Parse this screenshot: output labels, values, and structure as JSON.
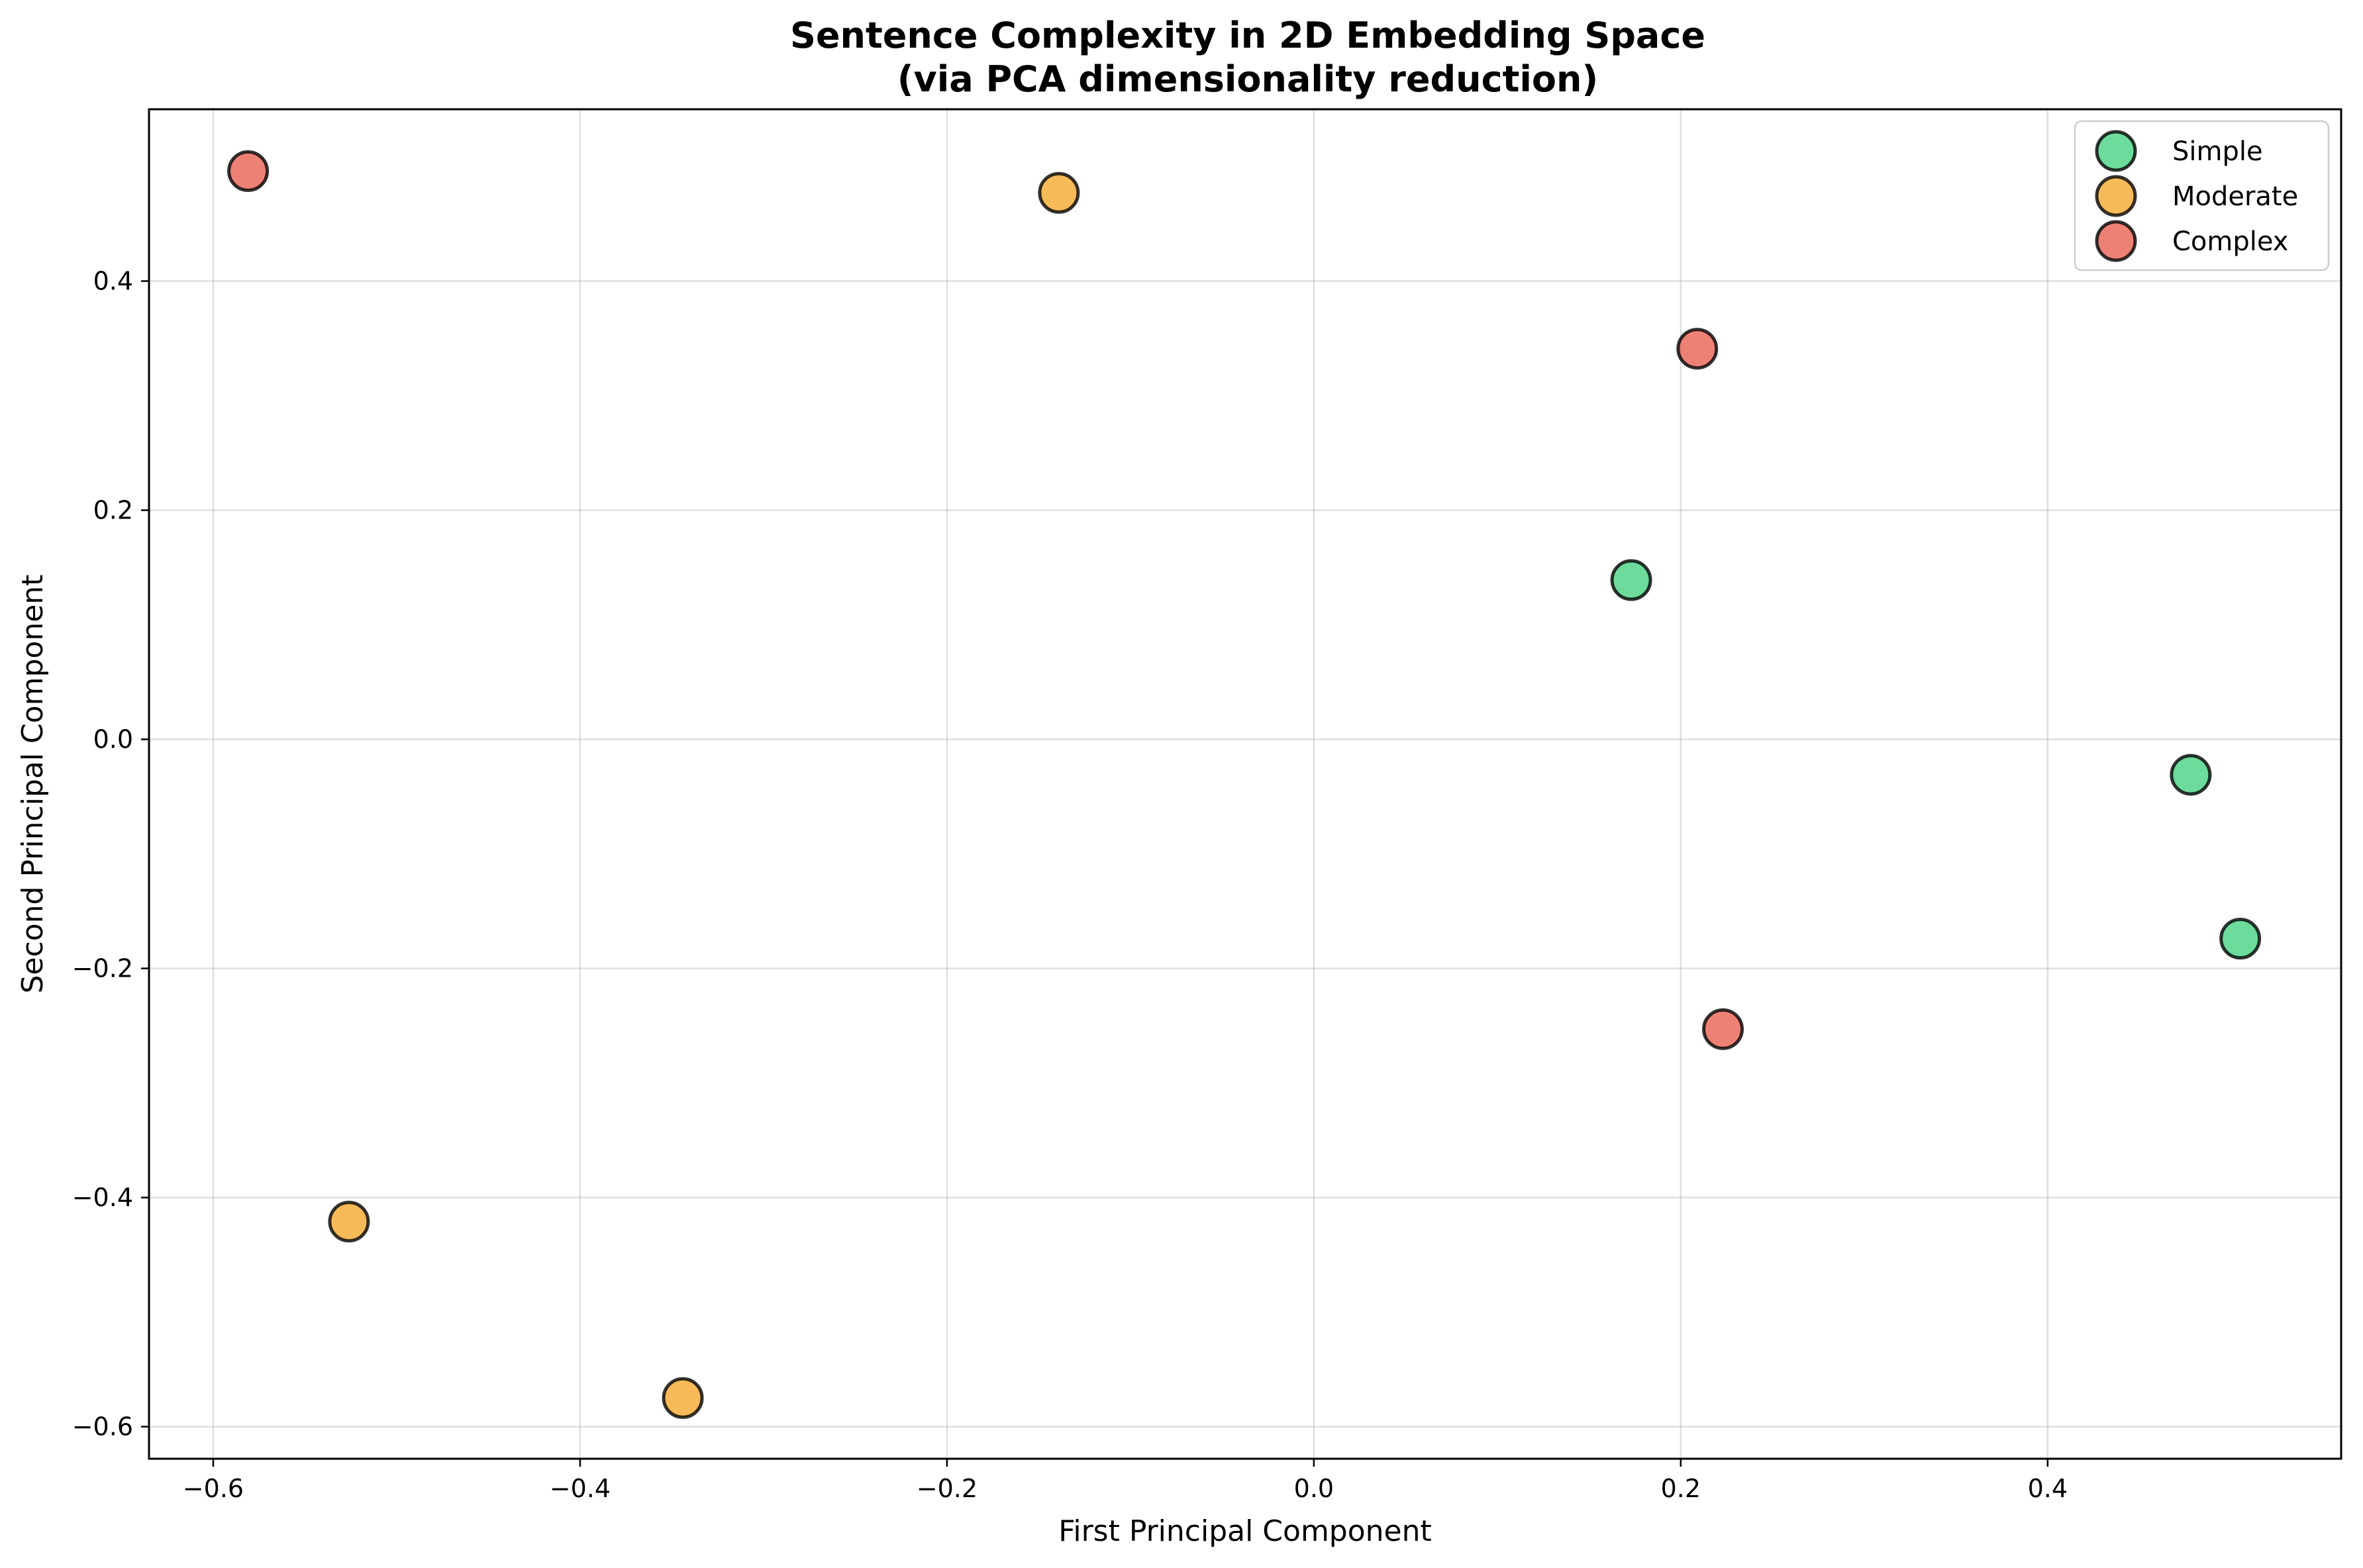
{
  "chart_data": {
    "type": "scatter",
    "title": "Sentence Complexity in 2D Embedding Space",
    "subtitle": "(via PCA dimensionality reduction)",
    "xlabel": "First Principal Component",
    "ylabel": "Second Principal Component",
    "xlim": [
      -0.635,
      0.56
    ],
    "ylim": [
      -0.628,
      0.55
    ],
    "xticks": [
      -0.6,
      -0.4,
      -0.2,
      0.0,
      0.2,
      0.4
    ],
    "xtick_labels": [
      "−0.6",
      "−0.4",
      "−0.2",
      "0.0",
      "0.2",
      "0.4"
    ],
    "yticks": [
      -0.6,
      -0.4,
      -0.2,
      0.0,
      0.2,
      0.4
    ],
    "ytick_labels": [
      "−0.6",
      "−0.4",
      "−0.2",
      "0.0",
      "0.2",
      "0.4"
    ],
    "grid": true,
    "legend_position": "top-right",
    "series": [
      {
        "name": "Simple",
        "color": "#2ecc71",
        "points": [
          {
            "x": 0.173,
            "y": 0.139
          },
          {
            "x": 0.478,
            "y": -0.031
          },
          {
            "x": 0.505,
            "y": -0.174
          }
        ]
      },
      {
        "name": "Moderate",
        "color": "#f39c12",
        "points": [
          {
            "x": -0.139,
            "y": 0.477
          },
          {
            "x": -0.526,
            "y": -0.421
          },
          {
            "x": -0.344,
            "y": -0.575
          }
        ]
      },
      {
        "name": "Complex",
        "color": "#e74c3c",
        "points": [
          {
            "x": -0.581,
            "y": 0.496
          },
          {
            "x": 0.209,
            "y": 0.341
          },
          {
            "x": 0.223,
            "y": -0.253
          }
        ]
      }
    ]
  }
}
